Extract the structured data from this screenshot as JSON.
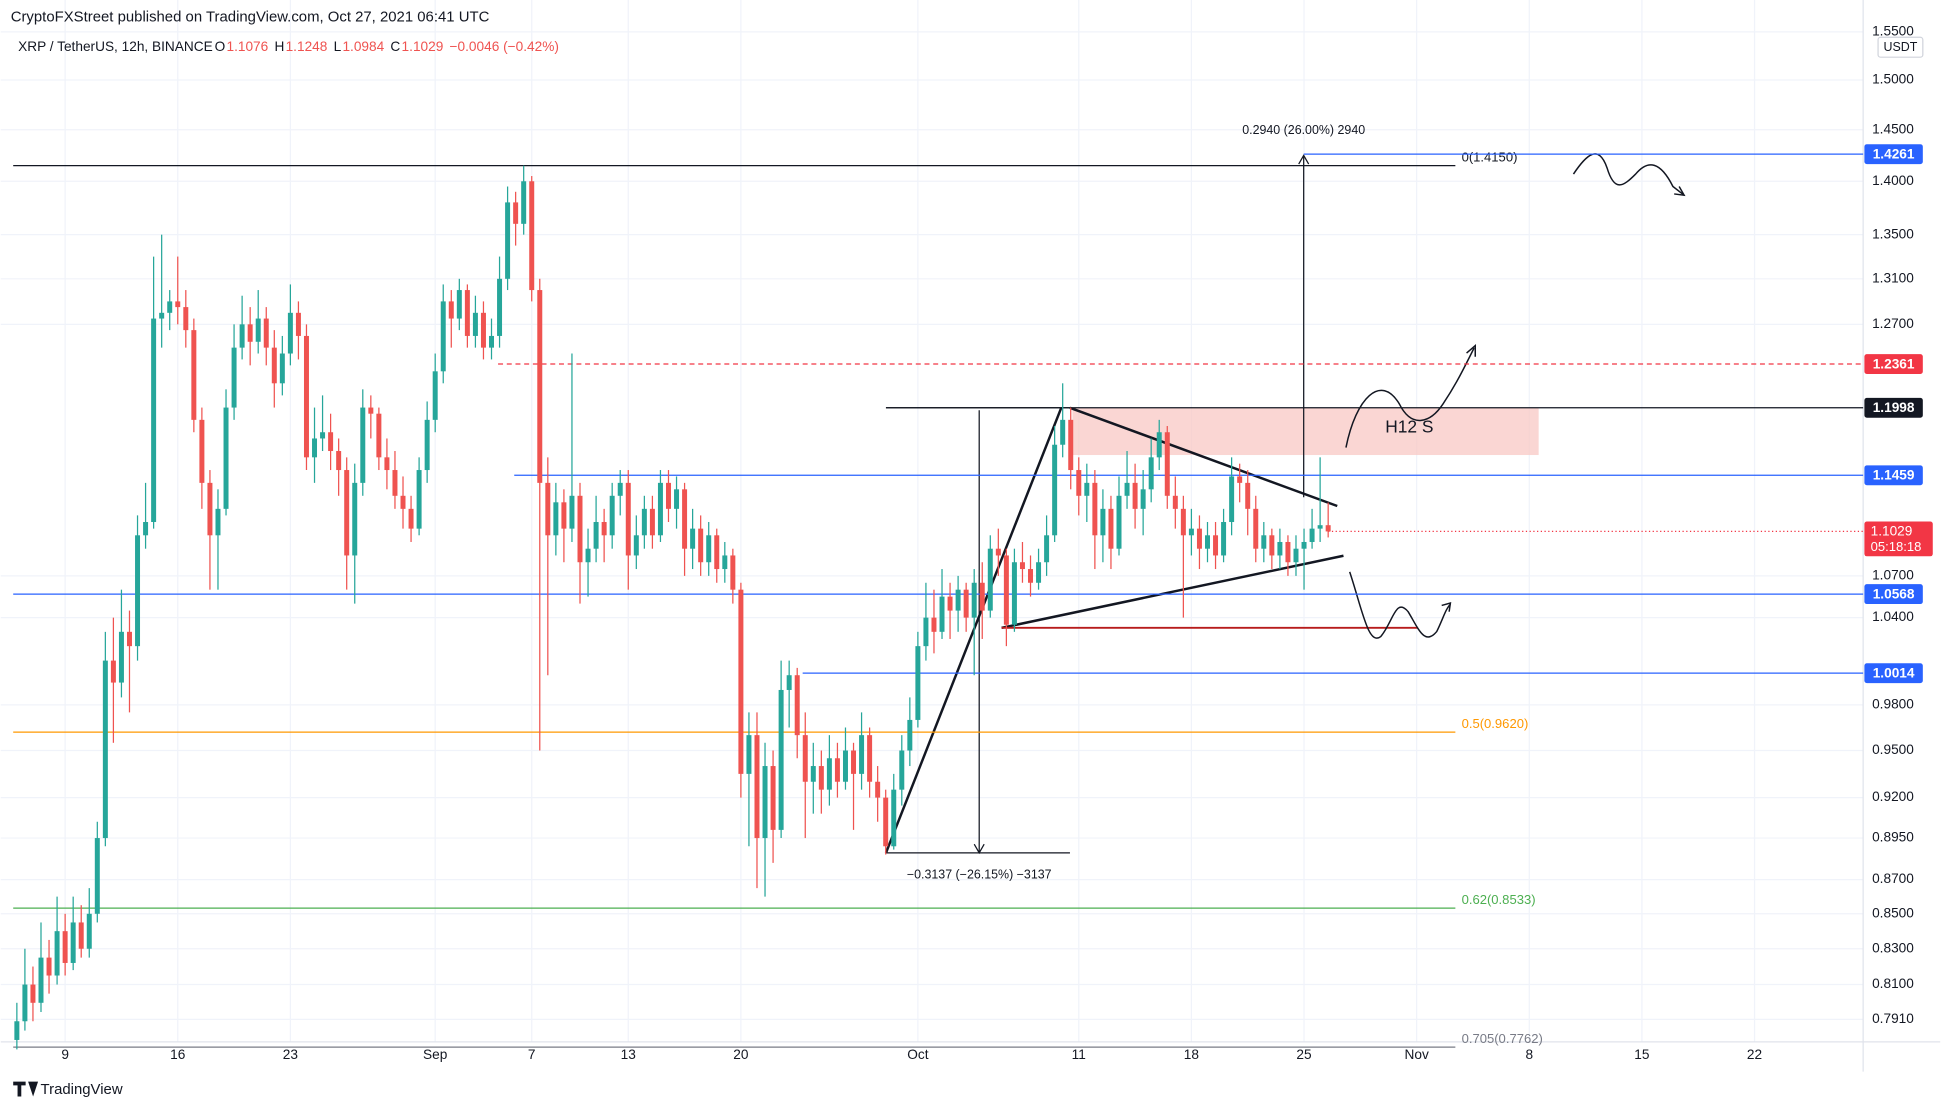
{
  "chart_data": {
    "type": "candlestick",
    "publisher": "CryptoFXStreet published on TradingView.com, Oct 27, 2021 06:41 UTC",
    "title": "XRP / TetherUS, 12h, BINANCE",
    "ohlc_legend": [
      {
        "label": "O",
        "value": 1.1076
      },
      {
        "label": "H",
        "value": 1.1248
      },
      {
        "label": "L",
        "value": 1.0984
      },
      {
        "label": "C",
        "value": 1.1029
      }
    ],
    "change": "−0.0046 (−0.42%)",
    "currency": "USDT",
    "countdown": "05:18:18",
    "brand": "TradingView",
    "up_color": "#26a69a",
    "down_color": "#ef5350",
    "log_scale": true,
    "grid": true,
    "xlim": [
      -2,
      229.5
    ],
    "ylim": [
      0.779,
      1.584
    ],
    "xticks": [
      {
        "value": 6,
        "label": "9"
      },
      {
        "value": 20,
        "label": "16"
      },
      {
        "value": 34,
        "label": "23"
      },
      {
        "value": 52,
        "label": "Sep"
      },
      {
        "value": 64,
        "label": "7"
      },
      {
        "value": 76,
        "label": "13"
      },
      {
        "value": 90,
        "label": "20"
      },
      {
        "value": 112,
        "label": "Oct"
      },
      {
        "value": 132,
        "label": "11"
      },
      {
        "value": 146,
        "label": "18"
      },
      {
        "value": 160,
        "label": "25"
      },
      {
        "value": 174,
        "label": "Nov"
      },
      {
        "value": 188,
        "label": "8"
      },
      {
        "value": 202,
        "label": "15"
      },
      {
        "value": 216,
        "label": "22"
      }
    ],
    "yticks": [
      {
        "value": 1.55,
        "label": "1.5500"
      },
      {
        "value": 1.5,
        "label": "1.5000"
      },
      {
        "value": 1.45,
        "label": "1.4500"
      },
      {
        "value": 1.4,
        "label": "1.4000"
      },
      {
        "value": 1.35,
        "label": "1.3500"
      },
      {
        "value": 1.31,
        "label": "1.3100"
      },
      {
        "value": 1.27,
        "label": "1.2700"
      },
      {
        "value": 1.07,
        "label": "1.0700"
      },
      {
        "value": 1.04,
        "label": "1.0400"
      },
      {
        "value": 0.98,
        "label": "0.9800"
      },
      {
        "value": 0.95,
        "label": "0.9500"
      },
      {
        "value": 0.92,
        "label": "0.9200"
      },
      {
        "value": 0.895,
        "label": "0.8950"
      },
      {
        "value": 0.87,
        "label": "0.8700"
      },
      {
        "value": 0.85,
        "label": "0.8500"
      },
      {
        "value": 0.83,
        "label": "0.8300"
      },
      {
        "value": 0.81,
        "label": "0.8100"
      },
      {
        "value": 0.791,
        "label": "0.7910"
      }
    ],
    "open": [
      0.78,
      0.79,
      0.81,
      0.8,
      0.825,
      0.815,
      0.84,
      0.822,
      0.845,
      0.83,
      0.85,
      0.895,
      1.01,
      0.995,
      1.03,
      1.02,
      1.1,
      1.11,
      1.275,
      1.28,
      1.29,
      1.285,
      1.265,
      1.19,
      1.14,
      1.1,
      1.12,
      1.2,
      1.25,
      1.27,
      1.255,
      1.275,
      1.25,
      1.22,
      1.245,
      1.28,
      1.26,
      1.16,
      1.175,
      1.18,
      1.165,
      1.15,
      1.085,
      1.14,
      1.2,
      1.195,
      1.16,
      1.15,
      1.13,
      1.12,
      1.105,
      1.15,
      1.19,
      1.23,
      1.29,
      1.275,
      1.3,
      1.26,
      1.28,
      1.25,
      1.26,
      1.31,
      1.38,
      1.36,
      1.4,
      1.3,
      1.14,
      1.1,
      1.125,
      1.105,
      1.13,
      1.08,
      1.09,
      1.11,
      1.1,
      1.13,
      1.14,
      1.085,
      1.1,
      1.12,
      1.1,
      1.14,
      1.12,
      1.135,
      1.09,
      1.105,
      1.08,
      1.1,
      1.075,
      1.085,
      1.06,
      0.935,
      0.96,
      0.895,
      0.94,
      0.9,
      0.99,
      1.0,
      0.96,
      0.93,
      0.94,
      0.925,
      0.945,
      0.93,
      0.95,
      0.935,
      0.96,
      0.93,
      0.92,
      0.89,
      0.925,
      0.95,
      0.97,
      1.02,
      1.04,
      1.03,
      1.055,
      1.045,
      1.06,
      1.04,
      1.065,
      1.045,
      1.09,
      1.085,
      1.035,
      1.08,
      1.075,
      1.065,
      1.08,
      1.1,
      1.17,
      1.19,
      1.15,
      1.13,
      1.14,
      1.1,
      1.12,
      1.09,
      1.13,
      1.14,
      1.12,
      1.135,
      1.16,
      1.18,
      1.13,
      1.12,
      1.1,
      1.105,
      1.09,
      1.1,
      1.085,
      1.11,
      1.145,
      1.14,
      1.12,
      1.09,
      1.1,
      1.085,
      1.095,
      1.08,
      1.09,
      1.095,
      1.105,
      1.1076
    ],
    "high": [
      0.8,
      0.83,
      0.82,
      0.845,
      0.835,
      0.86,
      0.85,
      0.86,
      0.855,
      0.865,
      0.905,
      1.03,
      1.04,
      1.06,
      1.045,
      1.115,
      1.14,
      1.33,
      1.35,
      1.3,
      1.33,
      1.3,
      1.275,
      1.2,
      1.15,
      1.135,
      1.215,
      1.27,
      1.295,
      1.285,
      1.3,
      1.285,
      1.265,
      1.26,
      1.305,
      1.29,
      1.27,
      1.2,
      1.21,
      1.195,
      1.175,
      1.16,
      1.155,
      1.215,
      1.21,
      1.2,
      1.175,
      1.165,
      1.145,
      1.13,
      1.16,
      1.205,
      1.245,
      1.305,
      1.3,
      1.31,
      1.305,
      1.295,
      1.29,
      1.275,
      1.33,
      1.395,
      1.39,
      1.415,
      1.405,
      1.31,
      1.16,
      1.14,
      1.135,
      1.245,
      1.14,
      1.105,
      1.13,
      1.12,
      1.14,
      1.15,
      1.15,
      1.115,
      1.13,
      1.13,
      1.15,
      1.15,
      1.145,
      1.14,
      1.12,
      1.115,
      1.11,
      1.105,
      1.095,
      1.09,
      1.065,
      0.975,
      0.975,
      0.955,
      0.95,
      1.01,
      1.01,
      1.005,
      0.975,
      0.955,
      0.95,
      0.96,
      0.955,
      0.965,
      0.955,
      0.975,
      0.965,
      0.94,
      0.925,
      0.935,
      0.96,
      0.985,
      1.03,
      1.065,
      1.06,
      1.075,
      1.065,
      1.07,
      1.065,
      1.075,
      1.08,
      1.1,
      1.105,
      1.09,
      1.09,
      1.095,
      1.085,
      1.09,
      1.115,
      1.185,
      1.22,
      1.2,
      1.16,
      1.155,
      1.15,
      1.135,
      1.13,
      1.145,
      1.165,
      1.155,
      1.15,
      1.175,
      1.19,
      1.185,
      1.145,
      1.13,
      1.12,
      1.115,
      1.11,
      1.11,
      1.12,
      1.16,
      1.155,
      1.15,
      1.13,
      1.11,
      1.105,
      1.105,
      1.1,
      1.1,
      1.105,
      1.12,
      1.16,
      1.1248
    ],
    "low": [
      0.775,
      0.785,
      0.79,
      0.795,
      0.805,
      0.81,
      0.815,
      0.818,
      0.825,
      0.825,
      0.845,
      0.89,
      0.955,
      0.985,
      0.975,
      1.01,
      1.09,
      1.105,
      1.25,
      1.265,
      1.27,
      1.25,
      1.18,
      1.12,
      1.06,
      1.06,
      1.115,
      1.19,
      1.24,
      1.235,
      1.245,
      1.235,
      1.2,
      1.21,
      1.235,
      1.24,
      1.15,
      1.14,
      1.165,
      1.15,
      1.13,
      1.06,
      1.05,
      1.13,
      1.175,
      1.15,
      1.135,
      1.12,
      1.105,
      1.095,
      1.1,
      1.14,
      1.18,
      1.22,
      1.25,
      1.265,
      1.25,
      1.25,
      1.24,
      1.24,
      1.25,
      1.3,
      1.34,
      1.35,
      1.29,
      0.95,
      1.0,
      1.085,
      1.08,
      1.095,
      1.05,
      1.055,
      1.08,
      1.08,
      1.09,
      1.115,
      1.06,
      1.075,
      1.09,
      1.09,
      1.095,
      1.11,
      1.105,
      1.07,
      1.075,
      1.07,
      1.07,
      1.065,
      1.065,
      1.05,
      0.92,
      0.89,
      0.865,
      0.86,
      0.88,
      0.895,
      0.965,
      0.945,
      0.895,
      0.91,
      0.91,
      0.915,
      0.92,
      0.925,
      0.9,
      0.925,
      0.92,
      0.905,
      0.885,
      0.888,
      0.915,
      0.94,
      0.965,
      1.01,
      1.015,
      1.025,
      1.025,
      1.03,
      1.03,
      1.0,
      1.025,
      1.04,
      1.07,
      1.02,
      1.03,
      1.065,
      1.055,
      1.06,
      1.07,
      1.095,
      1.16,
      1.135,
      1.115,
      1.11,
      1.075,
      1.08,
      1.075,
      1.085,
      1.12,
      1.105,
      1.1,
      1.125,
      1.15,
      1.12,
      1.105,
      1.04,
      1.085,
      1.075,
      1.08,
      1.075,
      1.08,
      1.1,
      1.125,
      1.1,
      1.08,
      1.08,
      1.075,
      1.075,
      1.07,
      1.07,
      1.06,
      1.09,
      1.095,
      1.0984
    ],
    "close": [
      0.79,
      0.81,
      0.8,
      0.825,
      0.815,
      0.84,
      0.822,
      0.845,
      0.83,
      0.85,
      0.895,
      1.01,
      0.995,
      1.03,
      1.02,
      1.1,
      1.11,
      1.275,
      1.28,
      1.29,
      1.285,
      1.265,
      1.19,
      1.14,
      1.1,
      1.12,
      1.2,
      1.25,
      1.27,
      1.255,
      1.275,
      1.25,
      1.22,
      1.245,
      1.28,
      1.26,
      1.16,
      1.175,
      1.18,
      1.165,
      1.15,
      1.085,
      1.14,
      1.2,
      1.195,
      1.16,
      1.15,
      1.13,
      1.12,
      1.105,
      1.15,
      1.19,
      1.23,
      1.29,
      1.275,
      1.3,
      1.26,
      1.28,
      1.25,
      1.26,
      1.31,
      1.38,
      1.36,
      1.4,
      1.3,
      1.14,
      1.1,
      1.125,
      1.105,
      1.13,
      1.08,
      1.09,
      1.11,
      1.1,
      1.13,
      1.14,
      1.085,
      1.1,
      1.12,
      1.1,
      1.14,
      1.12,
      1.135,
      1.09,
      1.105,
      1.08,
      1.1,
      1.075,
      1.085,
      1.06,
      0.935,
      0.96,
      0.895,
      0.94,
      0.9,
      0.99,
      1.0,
      0.96,
      0.93,
      0.94,
      0.925,
      0.945,
      0.93,
      0.95,
      0.935,
      0.96,
      0.93,
      0.92,
      0.89,
      0.925,
      0.95,
      0.97,
      1.02,
      1.04,
      1.03,
      1.055,
      1.045,
      1.06,
      1.04,
      1.065,
      1.045,
      1.09,
      1.085,
      1.035,
      1.08,
      1.075,
      1.065,
      1.08,
      1.1,
      1.17,
      1.19,
      1.15,
      1.13,
      1.14,
      1.1,
      1.12,
      1.09,
      1.13,
      1.14,
      1.12,
      1.135,
      1.16,
      1.18,
      1.13,
      1.12,
      1.1,
      1.105,
      1.09,
      1.1,
      1.085,
      1.11,
      1.145,
      1.14,
      1.12,
      1.09,
      1.1,
      1.085,
      1.095,
      1.08,
      1.09,
      1.095,
      1.105,
      1.1076,
      1.1029
    ],
    "fib_levels": [
      {
        "value": 1.415,
        "label": "0(1.4150)",
        "color": "#131722"
      },
      {
        "value": 0.962,
        "label": "0.5(0.9620)",
        "color": "#ff9800"
      },
      {
        "value": 0.8533,
        "label": "0.62(0.8533)",
        "color": "#4caf50"
      },
      {
        "value": 0.7762,
        "label": "0.705(0.7762)",
        "color": "#787b86"
      }
    ],
    "price_levels": [
      {
        "value": 1.4261,
        "color": "#2962ff"
      },
      {
        "value": 1.2361,
        "color": "#f23645"
      },
      {
        "value": 1.1998,
        "color": "#131722"
      },
      {
        "value": 1.1459,
        "color": "#2962ff"
      },
      {
        "value": 1.0568,
        "color": "#2962ff"
      },
      {
        "value": 1.0014,
        "color": "#2962ff"
      }
    ],
    "last_price": {
      "value": 1.1029,
      "color": "#f23645"
    },
    "annotations": {
      "measure_up": "0.2940 (26.00%) 2940",
      "measure_down": "−0.3137 (−26.15%) −3137",
      "zone": "H12 S"
    }
  }
}
